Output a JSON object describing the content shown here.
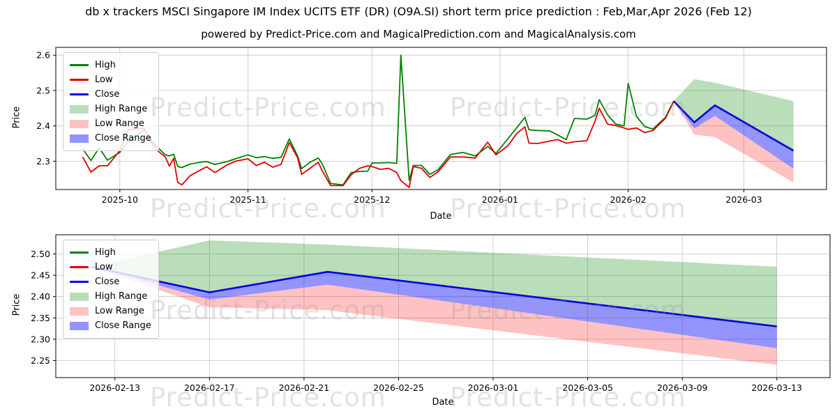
{
  "header": {
    "title": "db x trackers MSCI Singapore IM Index UCITS ETF (DR) (O9A.SI) short term price prediction : Feb,Mar,Apr 2026 (Feb 12)",
    "subtitle": "powered by Predict-Price.com and MagicalPrediction.com and MagicalAnalysis.com"
  },
  "watermark": {
    "text": "Predict-Price.com"
  },
  "colors": {
    "high": "#008000",
    "low": "#dd0000",
    "close": "#0000e0",
    "high_fill": "rgba(0,128,0,0.27)",
    "low_fill": "rgba(255,0,0,0.24)",
    "close_fill": "rgba(0,0,255,0.42)",
    "grid": "#c3c3c3",
    "spine": "#000000"
  },
  "chart_data": [
    {
      "type": "line",
      "title": "",
      "xlabel": "Date",
      "ylabel": "Price",
      "legend_position": "upper left",
      "grid": true,
      "xlim": [
        "2025-09-15T12:00:00Z",
        "2026-03-21T00:00:00Z"
      ],
      "ylim": [
        2.22,
        2.622
      ],
      "x_ticks": [
        {
          "date": "2025-10-01",
          "label": "2025-10"
        },
        {
          "date": "2025-11-01",
          "label": "2025-11"
        },
        {
          "date": "2025-12-01",
          "label": "2025-12"
        },
        {
          "date": "2026-01-01",
          "label": "2026-01"
        },
        {
          "date": "2026-02-01",
          "label": "2026-02"
        },
        {
          "date": "2026-03-01",
          "label": "2026-03"
        }
      ],
      "y_ticks": [
        {
          "value": 2.3,
          "label": "2.3"
        },
        {
          "value": 2.4,
          "label": "2.4"
        },
        {
          "value": 2.5,
          "label": "2.5"
        },
        {
          "value": 2.6,
          "label": "2.6"
        }
      ],
      "legend": [
        {
          "label": "High",
          "swatch": "line",
          "color_key": "high"
        },
        {
          "label": "Low",
          "swatch": "line",
          "color_key": "low"
        },
        {
          "label": "Close",
          "swatch": "line",
          "color_key": "close"
        },
        {
          "label": "High Range",
          "swatch": "patch",
          "color_key": "high_fill"
        },
        {
          "label": "Low Range",
          "swatch": "patch",
          "color_key": "low_fill"
        },
        {
          "label": "Close Range",
          "swatch": "patch",
          "color_key": "close_fill"
        }
      ],
      "series": {
        "dates": [
          "2025-09-22",
          "2025-09-24",
          "2025-09-26",
          "2025-09-28",
          "2025-10-01",
          "2025-10-03",
          "2025-10-05",
          "2025-10-07",
          "2025-10-08",
          "2025-10-10",
          "2025-10-12",
          "2025-10-13",
          "2025-10-14",
          "2025-10-15",
          "2025-10-16",
          "2025-10-18",
          "2025-10-20",
          "2025-10-22",
          "2025-10-24",
          "2025-10-27",
          "2025-10-29",
          "2025-11-01",
          "2025-11-03",
          "2025-11-05",
          "2025-11-07",
          "2025-11-09",
          "2025-11-11",
          "2025-11-13",
          "2025-11-14",
          "2025-11-16",
          "2025-11-18",
          "2025-11-19",
          "2025-11-21",
          "2025-11-24",
          "2025-11-26",
          "2025-11-28",
          "2025-11-30",
          "2025-12-01",
          "2025-12-03",
          "2025-12-05",
          "2025-12-07",
          "2025-12-08",
          "2025-12-10",
          "2025-12-11",
          "2025-12-13",
          "2025-12-15",
          "2025-12-17",
          "2025-12-20",
          "2025-12-23",
          "2025-12-26",
          "2025-12-29",
          "2025-12-31",
          "2026-01-03",
          "2026-01-05",
          "2026-01-07",
          "2026-01-08",
          "2026-01-10",
          "2026-01-13",
          "2026-01-15",
          "2026-01-17",
          "2026-01-19",
          "2026-01-22",
          "2026-01-24",
          "2026-01-25",
          "2026-01-27",
          "2026-01-29",
          "2026-01-31",
          "2026-02-01",
          "2026-02-03",
          "2026-02-05",
          "2026-02-07",
          "2026-02-10",
          "2026-02-12"
        ],
        "high": [
          2.335,
          2.302,
          2.338,
          2.303,
          2.325,
          2.355,
          2.372,
          2.388,
          2.368,
          2.341,
          2.318,
          2.315,
          2.32,
          2.285,
          2.282,
          2.292,
          2.296,
          2.299,
          2.291,
          2.299,
          2.307,
          2.318,
          2.31,
          2.313,
          2.308,
          2.311,
          2.363,
          2.315,
          2.279,
          2.297,
          2.309,
          2.292,
          2.237,
          2.233,
          2.268,
          2.271,
          2.272,
          2.295,
          2.295,
          2.296,
          2.294,
          2.6,
          2.246,
          2.288,
          2.288,
          2.263,
          2.276,
          2.319,
          2.325,
          2.315,
          2.342,
          2.322,
          2.365,
          2.394,
          2.424,
          2.389,
          2.387,
          2.386,
          2.374,
          2.361,
          2.421,
          2.419,
          2.43,
          2.474,
          2.431,
          2.405,
          2.4,
          2.52,
          2.427,
          2.398,
          2.391,
          2.424,
          2.47
        ],
        "low": [
          2.312,
          2.269,
          2.287,
          2.287,
          2.33,
          2.388,
          2.393,
          2.392,
          2.362,
          2.331,
          2.312,
          2.286,
          2.308,
          2.24,
          2.233,
          2.259,
          2.272,
          2.284,
          2.268,
          2.29,
          2.3,
          2.307,
          2.288,
          2.297,
          2.283,
          2.291,
          2.353,
          2.31,
          2.263,
          2.28,
          2.297,
          2.272,
          2.231,
          2.231,
          2.262,
          2.28,
          2.287,
          2.285,
          2.277,
          2.28,
          2.268,
          2.245,
          2.226,
          2.285,
          2.28,
          2.254,
          2.27,
          2.312,
          2.312,
          2.309,
          2.354,
          2.318,
          2.345,
          2.378,
          2.397,
          2.351,
          2.35,
          2.357,
          2.361,
          2.351,
          2.355,
          2.358,
          2.414,
          2.45,
          2.405,
          2.401,
          2.394,
          2.39,
          2.394,
          2.381,
          2.387,
          2.421,
          2.468
        ]
      },
      "prediction": {
        "dates": [
          "2026-02-12",
          "2026-02-17",
          "2026-02-22",
          "2026-03-13"
        ],
        "close": [
          2.47,
          2.41,
          2.458,
          2.33
        ],
        "high_range_top": [
          2.47,
          2.532,
          2.522,
          2.47
        ],
        "close_range_low": [
          2.47,
          2.393,
          2.428,
          2.279
        ],
        "low_range_low": [
          2.47,
          2.375,
          2.368,
          2.24
        ]
      }
    },
    {
      "type": "line",
      "title": "",
      "xlabel": "Date",
      "ylabel": "Price",
      "legend_position": "upper left",
      "grid": true,
      "xlim": [
        "2026-02-10T12:00:00Z",
        "2026-03-15T06:00:00Z"
      ],
      "ylim": [
        2.21,
        2.545
      ],
      "x_ticks": [
        {
          "date": "2026-02-13",
          "label": "2026-02-13"
        },
        {
          "date": "2026-02-17",
          "label": "2026-02-17"
        },
        {
          "date": "2026-02-21",
          "label": "2026-02-21"
        },
        {
          "date": "2026-02-25",
          "label": "2026-02-25"
        },
        {
          "date": "2026-03-01",
          "label": "2026-03-01"
        },
        {
          "date": "2026-03-05",
          "label": "2026-03-05"
        },
        {
          "date": "2026-03-09",
          "label": "2026-03-09"
        },
        {
          "date": "2026-03-13",
          "label": "2026-03-13"
        }
      ],
      "y_ticks": [
        {
          "value": 2.25,
          "label": "2.25"
        },
        {
          "value": 2.3,
          "label": "2.30"
        },
        {
          "value": 2.35,
          "label": "2.35"
        },
        {
          "value": 2.4,
          "label": "2.40"
        },
        {
          "value": 2.45,
          "label": "2.45"
        },
        {
          "value": 2.5,
          "label": "2.50"
        }
      ],
      "legend": [
        {
          "label": "High",
          "swatch": "line",
          "color_key": "high"
        },
        {
          "label": "Low",
          "swatch": "line",
          "color_key": "low"
        },
        {
          "label": "Close",
          "swatch": "line",
          "color_key": "close"
        },
        {
          "label": "High Range",
          "swatch": "patch",
          "color_key": "high_fill"
        },
        {
          "label": "Low Range",
          "swatch": "patch",
          "color_key": "low_fill"
        },
        {
          "label": "Close Range",
          "swatch": "patch",
          "color_key": "close_fill"
        }
      ],
      "prediction": {
        "dates": [
          "2026-02-12",
          "2026-02-17",
          "2026-02-22",
          "2026-03-13"
        ],
        "close": [
          2.47,
          2.41,
          2.458,
          2.33
        ],
        "high_range_top": [
          2.47,
          2.532,
          2.522,
          2.47
        ],
        "close_range_low": [
          2.47,
          2.393,
          2.428,
          2.279
        ],
        "low_range_low": [
          2.47,
          2.375,
          2.368,
          2.24
        ]
      }
    }
  ]
}
